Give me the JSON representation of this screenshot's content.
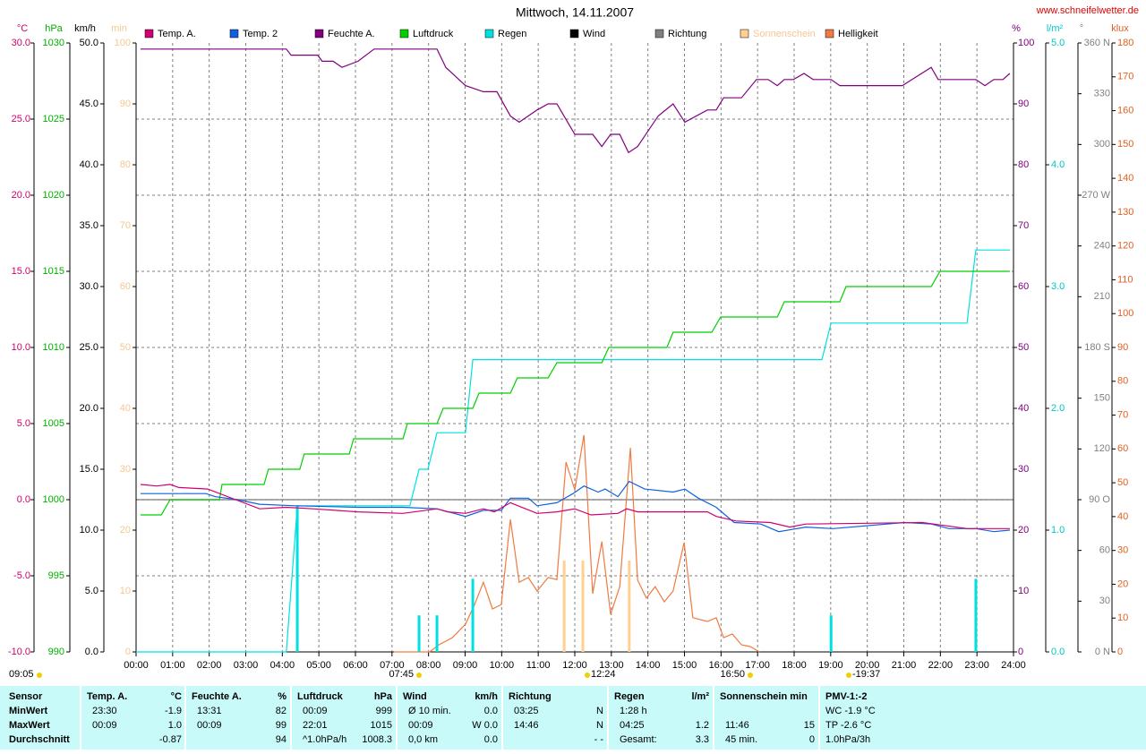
{
  "site": "www.schneifelwetter.de",
  "chart_data": {
    "type": "multi-axis-line",
    "title": "Mittwoch, 14.11.2007",
    "grid": true,
    "xlim": [
      0,
      24
    ],
    "xticks": [
      {
        "value": 0,
        "label": "00:00"
      },
      {
        "value": 1,
        "label": "01:00"
      },
      {
        "value": 2,
        "label": "02:00"
      },
      {
        "value": 3,
        "label": "03:00"
      },
      {
        "value": 4,
        "label": "04:00"
      },
      {
        "value": 5,
        "label": "05:00"
      },
      {
        "value": 6,
        "label": "06:00"
      },
      {
        "value": 7,
        "label": "07:00"
      },
      {
        "value": 8,
        "label": "08:00"
      },
      {
        "value": 9,
        "label": "09:00"
      },
      {
        "value": 10,
        "label": "10:00"
      },
      {
        "value": 11,
        "label": "11:00"
      },
      {
        "value": 12,
        "label": "12:00"
      },
      {
        "value": 13,
        "label": "13:00"
      },
      {
        "value": 14,
        "label": "14:00"
      },
      {
        "value": 15,
        "label": "15:00"
      },
      {
        "value": 16,
        "label": "16:00"
      },
      {
        "value": 17,
        "label": "17:00"
      },
      {
        "value": 18,
        "label": "18:00"
      },
      {
        "value": 19,
        "label": "19:00"
      },
      {
        "value": 20,
        "label": "20:00"
      },
      {
        "value": 21,
        "label": "21:00"
      },
      {
        "value": 22,
        "label": "22:00"
      },
      {
        "value": 23,
        "label": "23:00"
      },
      {
        "value": 24,
        "label": "24:00"
      }
    ],
    "axes": [
      {
        "id": "temp",
        "label": "°C",
        "color": "#d0006f",
        "lim": [
          -10,
          30
        ],
        "ticks": [
          {
            "value": -10,
            "label": "-10.0"
          },
          {
            "value": -5,
            "label": "-5.0"
          },
          {
            "value": 0,
            "label": "0.0"
          },
          {
            "value": 5,
            "label": "5.0"
          },
          {
            "value": 10,
            "label": "10.0"
          },
          {
            "value": 15,
            "label": "15.0"
          },
          {
            "value": 20,
            "label": "20.0"
          },
          {
            "value": 25,
            "label": "25.0"
          },
          {
            "value": 30,
            "label": "30.0"
          }
        ]
      },
      {
        "id": "hpa",
        "label": "hPa",
        "color": "#00b000",
        "lim": [
          990,
          1030
        ],
        "ticks": [
          990,
          995,
          1000,
          1005,
          1010,
          1015,
          1020,
          1025,
          1030
        ]
      },
      {
        "id": "kmh",
        "label": "km/h",
        "color": "#000000",
        "lim": [
          0,
          50
        ],
        "ticks": [
          {
            "value": 0,
            "label": "0.0"
          },
          {
            "value": 5,
            "label": "5.0"
          },
          {
            "value": 10,
            "label": "10.0"
          },
          {
            "value": 15,
            "label": "15.0"
          },
          {
            "value": 20,
            "label": "20.0"
          },
          {
            "value": 25,
            "label": "25.0"
          },
          {
            "value": 30,
            "label": "30.0"
          },
          {
            "value": 35,
            "label": "35.0"
          },
          {
            "value": 40,
            "label": "40.0"
          },
          {
            "value": 45,
            "label": "45.0"
          },
          {
            "value": 50,
            "label": "50.0"
          }
        ]
      },
      {
        "id": "min",
        "label": "min",
        "color": "#f5c890",
        "lim": [
          0,
          100
        ],
        "ticks": [
          0,
          10,
          20,
          30,
          40,
          50,
          60,
          70,
          80,
          90,
          100
        ]
      },
      {
        "id": "pct",
        "label": "%",
        "color": "#800080",
        "lim": [
          0,
          100
        ],
        "ticks": [
          0,
          10,
          20,
          30,
          40,
          50,
          60,
          70,
          80,
          90,
          100
        ]
      },
      {
        "id": "rain",
        "label": "l/m²",
        "color": "#00c8c8",
        "lim": [
          0,
          5
        ],
        "ticks": [
          {
            "value": 0,
            "label": "0.0"
          },
          {
            "value": 1,
            "label": "1.0"
          },
          {
            "value": 2,
            "label": "2.0"
          },
          {
            "value": 3,
            "label": "3.0"
          },
          {
            "value": 4,
            "label": "4.0"
          },
          {
            "value": 5,
            "label": "5.0"
          }
        ]
      },
      {
        "id": "dir",
        "label": "°",
        "color": "#808080",
        "lim": [
          0,
          360
        ],
        "ticks": [
          {
            "value": 0,
            "label": "0 N"
          },
          30,
          60,
          {
            "value": 90,
            "label": "90 O"
          },
          120,
          150,
          {
            "value": 180,
            "label": "180 S"
          },
          210,
          240,
          {
            "value": 270,
            "label": "270 W"
          },
          300,
          330,
          {
            "value": 360,
            "label": "360 N"
          }
        ]
      },
      {
        "id": "klux",
        "label": "klux",
        "color": "#e06020",
        "lim": [
          0,
          180
        ],
        "ticks": [
          0,
          10,
          20,
          30,
          40,
          50,
          60,
          70,
          80,
          90,
          100,
          110,
          120,
          130,
          140,
          150,
          160,
          170,
          180
        ]
      }
    ],
    "series": [
      {
        "name": "Temp. A.",
        "color": "#d0006f",
        "axis": "temp",
        "style": "line",
        "x": [
          0.12,
          0.56,
          0.93,
          1.17,
          1.96,
          3.38,
          4.11,
          4.85,
          6.07,
          7.3,
          8.23,
          8.52,
          9.01,
          9.5,
          9.8,
          10.24,
          10.97,
          11.51,
          12.0,
          12.44,
          13.18,
          13.42,
          13.72,
          14.4,
          15.63,
          15.87,
          16.41,
          17.35,
          17.88,
          18.32,
          21.51,
          22.73,
          23.9
        ],
        "values": [
          1.0,
          0.9,
          1.0,
          0.8,
          0.7,
          -0.6,
          -0.5,
          -0.6,
          -0.8,
          -0.9,
          -0.6,
          -0.8,
          -0.9,
          -0.6,
          -0.8,
          -0.2,
          -0.9,
          -0.8,
          -0.6,
          -1.0,
          -0.9,
          -0.6,
          -0.8,
          -0.8,
          -0.8,
          -1.1,
          -1.4,
          -1.5,
          -1.8,
          -1.6,
          -1.5,
          -1.9,
          -1.9
        ]
      },
      {
        "name": "Temp. 2",
        "color": "#1060e0",
        "axis": "temp",
        "style": "line",
        "x": [
          0.12,
          1.91,
          2.16,
          2.77,
          3.38,
          4.36,
          6.07,
          7.3,
          8.23,
          9.01,
          9.5,
          9.99,
          10.24,
          10.73,
          10.97,
          11.51,
          11.95,
          12.25,
          12.64,
          12.83,
          13.18,
          13.49,
          13.91,
          14.69,
          15.01,
          15.38,
          15.87,
          16.36,
          17.09,
          17.58,
          18.32,
          19.06,
          21.02,
          21.75,
          22.24,
          22.97,
          23.46,
          23.9
        ],
        "values": [
          0.4,
          0.4,
          0.2,
          0,
          -0.3,
          -0.4,
          -0.5,
          -0.5,
          -0.6,
          -1.1,
          -0.7,
          -0.7,
          0.1,
          0.1,
          -0.4,
          -0.2,
          0.4,
          0.9,
          0.5,
          0.7,
          0.2,
          1.2,
          0.7,
          0.5,
          0.7,
          0.1,
          -0.5,
          -1.5,
          -1.6,
          -2.1,
          -1.8,
          -1.9,
          -1.5,
          -1.6,
          -1.9,
          -1.9,
          -2.1,
          -2.0
        ]
      },
      {
        "name": "Feuchte A.",
        "color": "#800080",
        "axis": "pct",
        "style": "line",
        "x": [
          0.12,
          4.11,
          4.24,
          4.97,
          5.09,
          5.39,
          5.63,
          6.07,
          6.51,
          8.23,
          8.47,
          9.01,
          9.5,
          9.87,
          10.24,
          10.48,
          10.97,
          11.27,
          11.51,
          12.0,
          12.49,
          12.74,
          12.98,
          13.23,
          13.47,
          13.72,
          14.28,
          14.69,
          15.01,
          15.63,
          15.87,
          16.07,
          16.56,
          16.97,
          17.29,
          17.54,
          17.73,
          17.98,
          18.27,
          18.52,
          19.01,
          19.25,
          20.96,
          21.75,
          21.94,
          22.97,
          23.22,
          23.46,
          23.71,
          23.9
        ],
        "values": [
          99,
          99,
          98,
          98,
          97,
          97,
          96,
          97,
          99,
          99,
          96,
          93,
          92,
          92,
          88,
          87,
          89,
          90,
          90,
          85,
          85,
          83,
          85,
          85,
          82,
          83,
          88,
          90,
          87,
          89,
          89,
          91,
          91,
          94,
          94,
          93,
          94,
          94,
          95,
          94,
          94,
          93,
          93,
          96,
          94,
          94,
          93,
          94,
          94,
          95
        ]
      },
      {
        "name": "Luftdruck",
        "color": "#00d000",
        "axis": "hpa",
        "style": "line",
        "x": [
          0.12,
          0.69,
          0.93,
          2.28,
          2.35,
          3.5,
          3.62,
          4.48,
          4.6,
          5.83,
          5.95,
          7.3,
          7.42,
          8.23,
          8.4,
          9.21,
          9.38,
          10.24,
          10.43,
          11.27,
          11.51,
          12.74,
          12.93,
          14.52,
          14.69,
          15.75,
          15.99,
          17.54,
          17.73,
          19.25,
          19.42,
          21.75,
          21.99,
          23.9
        ],
        "values": [
          999,
          999,
          1000,
          1000,
          1001,
          1001,
          1002,
          1002,
          1003,
          1003,
          1004,
          1004,
          1005,
          1005,
          1006,
          1006,
          1007,
          1007,
          1008,
          1008,
          1009,
          1009,
          1010,
          1010,
          1011,
          1011,
          1012,
          1012,
          1013,
          1013,
          1014,
          1014,
          1015,
          1015
        ]
      },
      {
        "name": "Regen",
        "color": "#00e0e0",
        "axis": "rain",
        "style": "line",
        "x": [
          0,
          4.11,
          4.41,
          7.49,
          7.74,
          7.98,
          8.23,
          9.01,
          9.21,
          18.76,
          19.01,
          22.73,
          22.97,
          23.9
        ],
        "values": [
          0,
          0,
          1.2,
          1.2,
          1.5,
          1.5,
          1.8,
          1.8,
          2.4,
          2.4,
          2.7,
          2.7,
          3.3,
          3.3
        ],
        "bars": {
          "x": [
            4.41,
            7.74,
            8.23,
            9.21,
            19.01,
            22.97
          ],
          "values": [
            1.2,
            0.3,
            0.3,
            0.6,
            0.3,
            0.6
          ]
        }
      },
      {
        "name": "Wind",
        "color": "#000000",
        "axis": "kmh",
        "style": "line",
        "x": [],
        "values": []
      },
      {
        "name": "Richtung",
        "color": "#808080",
        "axis": "dir",
        "style": "line",
        "x": [],
        "values": []
      },
      {
        "name": "Sonnenschein",
        "color": "#ffd090",
        "label_color": "#f5c890",
        "axis": "min",
        "style": "bar",
        "x": [
          11.71,
          12.22,
          13.49
        ],
        "values": [
          15,
          15,
          15
        ]
      },
      {
        "name": "Helligkeit",
        "color": "#f07a40",
        "axis": "klux",
        "style": "line",
        "x": [
          7.05,
          8.03,
          8.28,
          8.65,
          9.01,
          9.26,
          9.5,
          9.75,
          9.99,
          10.24,
          10.48,
          10.73,
          10.97,
          11.27,
          11.51,
          11.76,
          12.0,
          12.25,
          12.49,
          12.74,
          12.98,
          13.23,
          13.52,
          13.72,
          13.96,
          14.2,
          14.45,
          14.69,
          14.99,
          15.23,
          15.63,
          15.87,
          16.07,
          16.31,
          16.56,
          16.8,
          17.05
        ],
        "values": [
          0,
          0,
          2.1,
          4.2,
          8.2,
          14,
          20.6,
          12.7,
          14,
          39.2,
          20.6,
          22,
          18,
          22,
          21.4,
          56.1,
          47.9,
          64.1,
          17.2,
          32.6,
          11.1,
          19.3,
          60.3,
          21.2,
          15.9,
          19.3,
          14.8,
          18,
          32.3,
          10.1,
          9,
          10.1,
          4.2,
          5.3,
          2.1,
          1.6,
          0
        ]
      }
    ],
    "annotations": [
      "09:05",
      "07:45",
      "12:24",
      "16:50",
      "-19:37"
    ]
  },
  "summary": {
    "headers": [
      [
        "Sensor"
      ],
      [
        "Temp. A.",
        "°C"
      ],
      [
        "Feuchte A.",
        "%"
      ],
      [
        "Luftdruck",
        "hPa"
      ],
      [
        "Wind",
        "km/h"
      ],
      [
        "Richtung"
      ],
      [
        "Regen",
        "l/m²"
      ],
      [
        "Sonnenschein min"
      ],
      [
        "PMV-1:-2"
      ]
    ],
    "rows": [
      {
        "label": "MinWert",
        "cells": [
          [
            "23:30",
            "-1.9"
          ],
          [
            "13:31",
            "82"
          ],
          [
            "00:09",
            "999"
          ],
          [
            "Ø 10 min.",
            "0.0"
          ],
          [
            "03:25",
            "N"
          ],
          [
            "1:28 h",
            null
          ],
          [
            null,
            null
          ],
          [
            "WC -1.9 °C"
          ]
        ]
      },
      {
        "label": "MaxWert",
        "cells": [
          [
            "00:09",
            "1.0"
          ],
          [
            "00:09",
            "99"
          ],
          [
            "22:01",
            "1015"
          ],
          [
            "00:09",
            "W 0.0"
          ],
          [
            "14:46",
            "N"
          ],
          [
            "04:25",
            "1.2"
          ],
          [
            "11:46",
            "15"
          ],
          [
            "TP -2.6 °C"
          ]
        ]
      },
      {
        "label": "Durchschnitt",
        "cells": [
          [
            null,
            "-0.87"
          ],
          [
            null,
            "94"
          ],
          [
            "^1.0hPa/h",
            "1008.3"
          ],
          [
            "0,0 km",
            "0.0"
          ],
          [
            null,
            "- -"
          ],
          [
            "Gesamt:",
            "3.3"
          ],
          [
            "45 min.",
            "0"
          ],
          [
            "1.0hPa/3h"
          ]
        ]
      }
    ]
  }
}
